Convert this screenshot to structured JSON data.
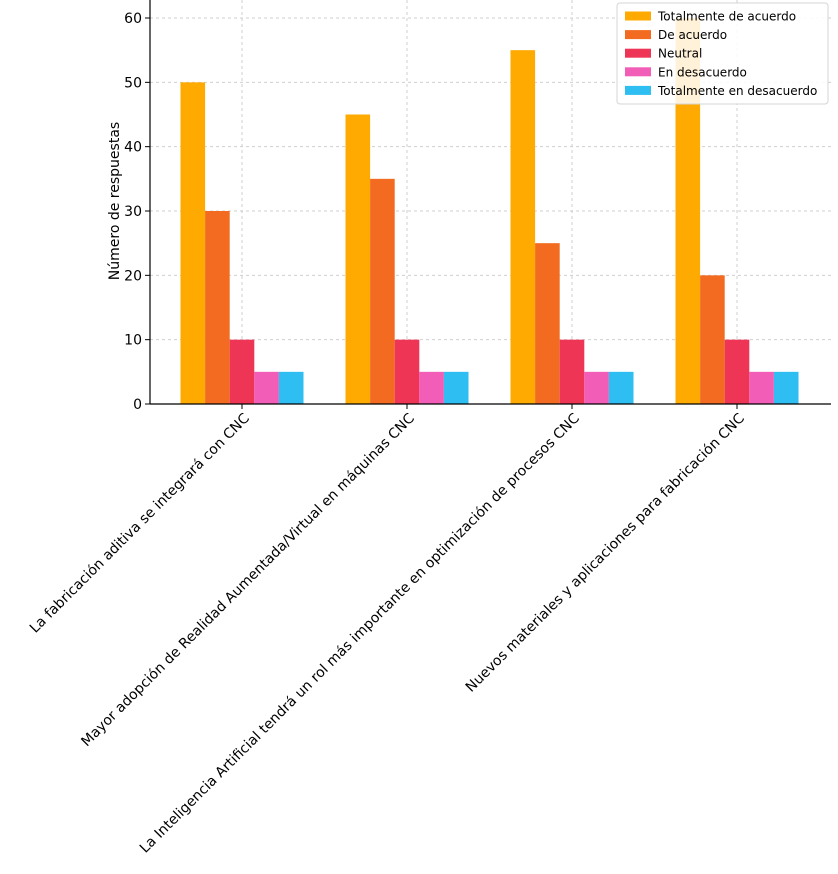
{
  "chart_data": {
    "type": "bar",
    "title": "",
    "xlabel": "",
    "ylabel": "Número de respuestas",
    "ylim": [
      0,
      60
    ],
    "yticks": [
      0,
      10,
      20,
      30,
      40,
      50,
      60
    ],
    "grid": true,
    "legend_position": "top-right",
    "categories": [
      "La fabricación aditiva se integrará con CNC",
      "Mayor adopción de Realidad Aumentada/Virtual en máquinas CNC",
      "La Inteligencia Artificial tendrá un rol más importante en optimización de procesos CNC",
      "Nuevos materiales y aplicaciones para fabricación CNC"
    ],
    "series": [
      {
        "name": "Totalmente de acuerdo",
        "color": "#FFAA00",
        "values": [
          50,
          45,
          55,
          60
        ]
      },
      {
        "name": "De acuerdo",
        "color": "#F26B21",
        "values": [
          30,
          35,
          25,
          20
        ]
      },
      {
        "name": "Neutral",
        "color": "#EE3555",
        "values": [
          10,
          10,
          10,
          10
        ]
      },
      {
        "name": "En desacuerdo",
        "color": "#F25DB8",
        "values": [
          5,
          5,
          5,
          5
        ]
      },
      {
        "name": "Totalmente en desacuerdo",
        "color": "#2EBEF2",
        "values": [
          5,
          5,
          5,
          5
        ]
      }
    ]
  }
}
